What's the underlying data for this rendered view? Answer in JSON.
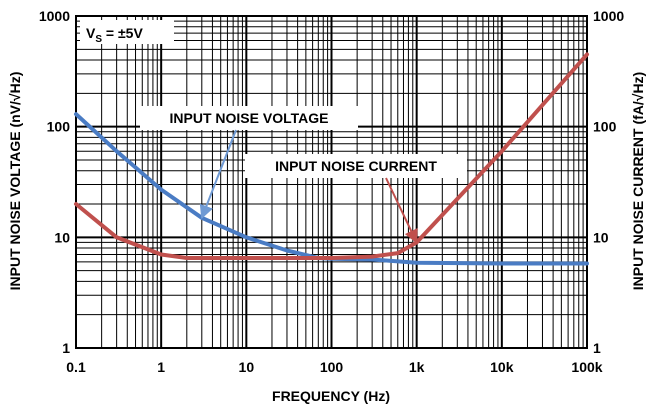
{
  "chart_data": {
    "type": "line",
    "x_scale": "log",
    "y_scale": "log",
    "grid": true,
    "xlabel": "FREQUENCY (Hz)",
    "ylabel_left": "INPUT NOISE VOLTAGE (nV/√Hz)",
    "ylabel_right": "INPUT NOISE CURRENT (fA/√Hz)",
    "xlim": [
      0.1,
      100000
    ],
    "ylim": [
      1,
      1000
    ],
    "x_ticks": [
      {
        "value": 0.1,
        "label": "0.1"
      },
      {
        "value": 1,
        "label": "1"
      },
      {
        "value": 10,
        "label": "10"
      },
      {
        "value": 100,
        "label": "100"
      },
      {
        "value": 1000,
        "label": "1k"
      },
      {
        "value": 10000,
        "label": "10k"
      },
      {
        "value": 100000,
        "label": "100k"
      }
    ],
    "y_ticks_left": [
      {
        "value": 1,
        "label": "1"
      },
      {
        "value": 10,
        "label": "10"
      },
      {
        "value": 100,
        "label": "100"
      },
      {
        "value": 1000,
        "label": "1000"
      }
    ],
    "y_ticks_right": [
      {
        "value": 1,
        "label": "1"
      },
      {
        "value": 10,
        "label": "10"
      },
      {
        "value": 100,
        "label": "100"
      },
      {
        "value": 1000,
        "label": "1000"
      }
    ],
    "condition": {
      "main": "V",
      "sub": "S",
      "rest": " = ±5V"
    },
    "series": [
      {
        "name": "INPUT NOISE VOLTAGE",
        "color": "#4a7cc4",
        "x": [
          0.1,
          0.3,
          1,
          3,
          10,
          30,
          70,
          100,
          300,
          1000,
          10000,
          100000
        ],
        "y": [
          130,
          60,
          27,
          15,
          10,
          7.6,
          6.5,
          6.4,
          6.3,
          5.9,
          5.8,
          5.8
        ]
      },
      {
        "name": "INPUT NOISE CURRENT",
        "color": "#c0504d",
        "x": [
          0.1,
          0.3,
          1,
          2,
          10,
          100,
          300,
          600,
          1000,
          10000,
          100000
        ],
        "y": [
          20,
          10,
          7,
          6.5,
          6.5,
          6.5,
          6.7,
          7.2,
          9,
          60,
          450
        ]
      }
    ],
    "annotations": [
      {
        "text": "INPUT NOISE VOLTAGE",
        "series": 0,
        "arrow_to_x": 3
      },
      {
        "text": "INPUT NOISE CURRENT",
        "series": 1,
        "arrow_to_x": 1000
      }
    ]
  }
}
